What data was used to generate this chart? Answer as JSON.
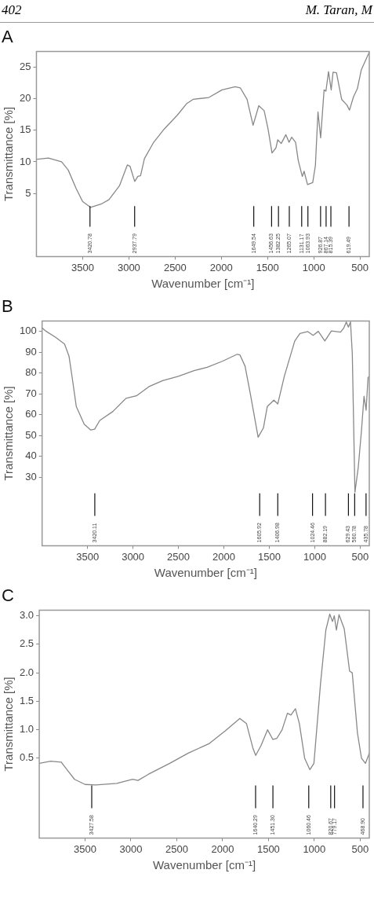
{
  "chart_data": [
    {
      "type": "line",
      "title": "A",
      "xlabel": "Wavenumber [cm⁻¹]",
      "ylabel": "Transmittance [%]",
      "marker": "none",
      "grid": false,
      "xlim": [
        4000,
        400
      ],
      "xticks": [
        3500,
        3000,
        2500,
        2000,
        1500,
        1000,
        500
      ],
      "ylim": [
        -5,
        27.5
      ],
      "yticks": [
        5,
        10,
        15,
        20,
        25
      ],
      "x": [
        3990,
        3870,
        3728,
        3656,
        3571,
        3500,
        3415,
        3301,
        3216,
        3102,
        3017,
        2988,
        2937,
        2903,
        2874,
        2832,
        2732,
        2618,
        2476,
        2377,
        2306,
        2135,
        1993,
        1850,
        1794,
        1722,
        1657,
        1595,
        1537,
        1495,
        1452,
        1410,
        1390,
        1353,
        1302,
        1268,
        1239,
        1197,
        1168,
        1125,
        1105,
        1068,
        1012,
        983,
        955,
        926,
        889,
        869,
        841,
        812,
        792,
        755,
        699,
        642,
        614,
        571,
        529,
        486,
        443,
        400
      ],
      "series": [
        {
          "color": "#888888",
          "values": [
            10.4,
            10.6,
            10.0,
            8.7,
            5.8,
            3.7,
            2.8,
            3.3,
            4.0,
            6.2,
            9.5,
            9.3,
            6.9,
            7.7,
            7.8,
            10.5,
            13.1,
            15.2,
            17.4,
            19.2,
            19.9,
            20.2,
            21.4,
            21.9,
            21.7,
            19.9,
            15.8,
            18.9,
            18.1,
            15.2,
            11.4,
            12.2,
            13.5,
            12.9,
            14.3,
            13.1,
            13.9,
            13.1,
            10.2,
            7.7,
            8.5,
            6.4,
            6.7,
            9.4,
            17.9,
            13.8,
            21.4,
            21.2,
            24.3,
            21.4,
            24.2,
            24.1,
            19.9,
            19.0,
            18.2,
            20.3,
            21.6,
            24.6,
            26.0,
            27.4
          ]
        }
      ],
      "annotations": [
        "402",
        "M. Taran, M"
      ],
      "ref_lines": [
        {
          "axis": "x",
          "value": 3420.78,
          "label": "3420.78"
        },
        {
          "axis": "x",
          "value": 2937.79,
          "label": "2937.79"
        },
        {
          "axis": "x",
          "value": 1649.54,
          "label": "1649.54"
        },
        {
          "axis": "x",
          "value": 1456.63,
          "label": "1456.63"
        },
        {
          "axis": "x",
          "value": 1382.25,
          "label": "1382.25"
        },
        {
          "axis": "x",
          "value": 1265.07,
          "label": "1265.07"
        },
        {
          "axis": "x",
          "value": 1131.17,
          "label": "1131.17"
        },
        {
          "axis": "x",
          "value": 1063.93,
          "label": "1063.93"
        },
        {
          "axis": "x",
          "value": 926.87,
          "label": "926.87"
        },
        {
          "axis": "x",
          "value": 867.14,
          "label": "867.14"
        },
        {
          "axis": "x",
          "value": 815.39,
          "label": "815.39"
        },
        {
          "axis": "x",
          "value": 619.49,
          "label": "619.49"
        }
      ]
    },
    {
      "type": "line",
      "title": "B",
      "xlabel": "Wavenumber [cm⁻¹]",
      "ylabel": "Transmittance [%]",
      "marker": "none",
      "grid": false,
      "xlim": [
        4000,
        400
      ],
      "xticks": [
        3500,
        3000,
        2500,
        2000,
        1500,
        1000,
        500
      ],
      "ylim": [
        -3,
        105
      ],
      "yticks": [
        30,
        40,
        50,
        60,
        70,
        80,
        90,
        100
      ],
      "x": [
        4000,
        3955,
        3854,
        3768,
        3753,
        3704,
        3667,
        3624,
        3537,
        3465,
        3422,
        3365,
        3221,
        3077,
        2962,
        2818,
        2674,
        2501,
        2328,
        2184,
        2012,
        1853,
        1824,
        1767,
        1709,
        1623,
        1565,
        1522,
        1450,
        1407,
        1335,
        1220,
        1163,
        1076,
        1018,
        961,
        889,
        817,
        716,
        682,
        653,
        630,
        607,
        587,
        558,
        521,
        486,
        458,
        435,
        414,
        400
      ],
      "series": [
        {
          "color": "#888888",
          "values": [
            101.7,
            100,
            97.2,
            94.4,
            93.9,
            88.1,
            77.2,
            63.9,
            55.4,
            52.6,
            53.0,
            57.2,
            61.5,
            67.8,
            69.0,
            73.6,
            76.3,
            78.4,
            81.1,
            82.7,
            85.7,
            89.0,
            88.7,
            83.3,
            70.0,
            49.1,
            53.6,
            63.9,
            66.9,
            65.1,
            78.4,
            95.4,
            99.0,
            99.9,
            98.1,
            100,
            95.4,
            100.2,
            99.6,
            101.5,
            104.5,
            102,
            104.5,
            89.3,
            22.7,
            34.8,
            52.4,
            68.8,
            62.1,
            77.8,
            78.4
          ]
        }
      ],
      "ref_lines": [
        {
          "axis": "x",
          "value": 3420.11,
          "label": "3420.11"
        },
        {
          "axis": "x",
          "value": 1605.92,
          "label": "1605.92"
        },
        {
          "axis": "x",
          "value": 1406.98,
          "label": "1406.98"
        },
        {
          "axis": "x",
          "value": 1024.46,
          "label": "1024.46"
        },
        {
          "axis": "x",
          "value": 882.19,
          "label": "882.19"
        },
        {
          "axis": "x",
          "value": 629.43,
          "label": "629.43"
        },
        {
          "axis": "x",
          "value": 560.78,
          "label": "560.78"
        },
        {
          "axis": "x",
          "value": 435.78,
          "label": "435.78"
        }
      ]
    },
    {
      "type": "line",
      "title": "C",
      "xlabel": "Wavenumber [cm⁻¹]",
      "ylabel": "Transmittance [%]",
      "marker": "none",
      "grid": false,
      "xlim": [
        4000,
        400
      ],
      "xticks": [
        3500,
        3000,
        2500,
        2000,
        1500,
        1000,
        500
      ],
      "ylim": [
        -0.9,
        3.1
      ],
      "yticks": [
        {
          "value": 0.5,
          "label": "0.5"
        },
        {
          "value": 1,
          "label": "1.0"
        },
        {
          "value": 1.5,
          "label": "1.5"
        },
        {
          "value": 2,
          "label": "2.0"
        },
        {
          "value": 2.5,
          "label": "2.5"
        },
        {
          "value": 3,
          "label": "3.0"
        }
      ],
      "x": [
        4000,
        3875,
        3760,
        3688,
        3615,
        3500,
        3385,
        3154,
        2981,
        2923,
        2808,
        2577,
        2375,
        2144,
        1971,
        1812,
        1740,
        1668,
        1639,
        1582,
        1510,
        1452,
        1408,
        1351,
        1293,
        1255,
        1206,
        1163,
        1105,
        1048,
        1004,
        932,
        874,
        831,
        802,
        782,
        759,
        730,
        673,
        615,
        586,
        529,
        485,
        442,
        400
      ],
      "series": [
        {
          "color": "#888888",
          "values": [
            0.41,
            0.45,
            0.43,
            0.28,
            0.13,
            0.04,
            0.03,
            0.06,
            0.13,
            0.11,
            0.22,
            0.41,
            0.59,
            0.76,
            0.98,
            1.2,
            1.11,
            0.67,
            0.55,
            0.72,
            1.0,
            0.83,
            0.85,
            1.0,
            1.29,
            1.26,
            1.37,
            1.11,
            0.5,
            0.3,
            0.41,
            1.81,
            2.75,
            3.03,
            2.9,
            3.0,
            2.75,
            3.02,
            2.77,
            2.03,
            2.0,
            0.94,
            0.5,
            0.41,
            0.59
          ]
        }
      ],
      "ref_lines": [
        {
          "axis": "x",
          "value": 3427.58,
          "label": "3427.58"
        },
        {
          "axis": "x",
          "value": 1640.29,
          "label": "1640.29"
        },
        {
          "axis": "x",
          "value": 1451.3,
          "label": "1451.30"
        },
        {
          "axis": "x",
          "value": 1060.46,
          "label": "1060.46"
        },
        {
          "axis": "x",
          "value": 820.67,
          "label": "820.67"
        },
        {
          "axis": "x",
          "value": 779.17,
          "label": "779.17"
        },
        {
          "axis": "x",
          "value": 468.9,
          "label": "468.90"
        }
      ]
    }
  ]
}
